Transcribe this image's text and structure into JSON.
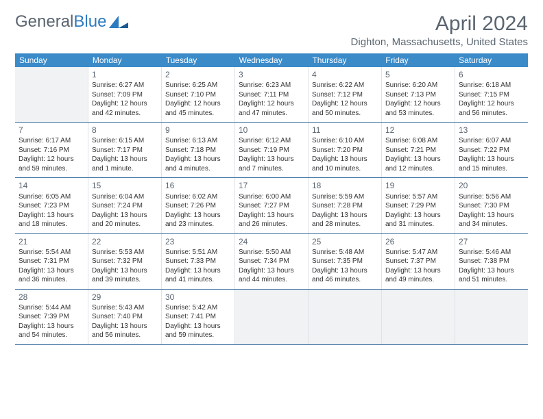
{
  "logo": {
    "part1": "General",
    "part2": "Blue"
  },
  "title": "April 2024",
  "location": "Dighton, Massachusetts, United States",
  "colors": {
    "header_bg": "#3b8bc9",
    "header_text": "#ffffff",
    "border": "#3b6fa0",
    "cell_border": "#dde3e8",
    "text": "#333333",
    "muted": "#5a6570",
    "empty_bg": "#f0f2f4"
  },
  "weekdays": [
    "Sunday",
    "Monday",
    "Tuesday",
    "Wednesday",
    "Thursday",
    "Friday",
    "Saturday"
  ],
  "weeks": [
    [
      null,
      {
        "n": "1",
        "sr": "Sunrise: 6:27 AM",
        "ss": "Sunset: 7:09 PM",
        "dl1": "Daylight: 12 hours",
        "dl2": "and 42 minutes."
      },
      {
        "n": "2",
        "sr": "Sunrise: 6:25 AM",
        "ss": "Sunset: 7:10 PM",
        "dl1": "Daylight: 12 hours",
        "dl2": "and 45 minutes."
      },
      {
        "n": "3",
        "sr": "Sunrise: 6:23 AM",
        "ss": "Sunset: 7:11 PM",
        "dl1": "Daylight: 12 hours",
        "dl2": "and 47 minutes."
      },
      {
        "n": "4",
        "sr": "Sunrise: 6:22 AM",
        "ss": "Sunset: 7:12 PM",
        "dl1": "Daylight: 12 hours",
        "dl2": "and 50 minutes."
      },
      {
        "n": "5",
        "sr": "Sunrise: 6:20 AM",
        "ss": "Sunset: 7:13 PM",
        "dl1": "Daylight: 12 hours",
        "dl2": "and 53 minutes."
      },
      {
        "n": "6",
        "sr": "Sunrise: 6:18 AM",
        "ss": "Sunset: 7:15 PM",
        "dl1": "Daylight: 12 hours",
        "dl2": "and 56 minutes."
      }
    ],
    [
      {
        "n": "7",
        "sr": "Sunrise: 6:17 AM",
        "ss": "Sunset: 7:16 PM",
        "dl1": "Daylight: 12 hours",
        "dl2": "and 59 minutes."
      },
      {
        "n": "8",
        "sr": "Sunrise: 6:15 AM",
        "ss": "Sunset: 7:17 PM",
        "dl1": "Daylight: 13 hours",
        "dl2": "and 1 minute."
      },
      {
        "n": "9",
        "sr": "Sunrise: 6:13 AM",
        "ss": "Sunset: 7:18 PM",
        "dl1": "Daylight: 13 hours",
        "dl2": "and 4 minutes."
      },
      {
        "n": "10",
        "sr": "Sunrise: 6:12 AM",
        "ss": "Sunset: 7:19 PM",
        "dl1": "Daylight: 13 hours",
        "dl2": "and 7 minutes."
      },
      {
        "n": "11",
        "sr": "Sunrise: 6:10 AM",
        "ss": "Sunset: 7:20 PM",
        "dl1": "Daylight: 13 hours",
        "dl2": "and 10 minutes."
      },
      {
        "n": "12",
        "sr": "Sunrise: 6:08 AM",
        "ss": "Sunset: 7:21 PM",
        "dl1": "Daylight: 13 hours",
        "dl2": "and 12 minutes."
      },
      {
        "n": "13",
        "sr": "Sunrise: 6:07 AM",
        "ss": "Sunset: 7:22 PM",
        "dl1": "Daylight: 13 hours",
        "dl2": "and 15 minutes."
      }
    ],
    [
      {
        "n": "14",
        "sr": "Sunrise: 6:05 AM",
        "ss": "Sunset: 7:23 PM",
        "dl1": "Daylight: 13 hours",
        "dl2": "and 18 minutes."
      },
      {
        "n": "15",
        "sr": "Sunrise: 6:04 AM",
        "ss": "Sunset: 7:24 PM",
        "dl1": "Daylight: 13 hours",
        "dl2": "and 20 minutes."
      },
      {
        "n": "16",
        "sr": "Sunrise: 6:02 AM",
        "ss": "Sunset: 7:26 PM",
        "dl1": "Daylight: 13 hours",
        "dl2": "and 23 minutes."
      },
      {
        "n": "17",
        "sr": "Sunrise: 6:00 AM",
        "ss": "Sunset: 7:27 PM",
        "dl1": "Daylight: 13 hours",
        "dl2": "and 26 minutes."
      },
      {
        "n": "18",
        "sr": "Sunrise: 5:59 AM",
        "ss": "Sunset: 7:28 PM",
        "dl1": "Daylight: 13 hours",
        "dl2": "and 28 minutes."
      },
      {
        "n": "19",
        "sr": "Sunrise: 5:57 AM",
        "ss": "Sunset: 7:29 PM",
        "dl1": "Daylight: 13 hours",
        "dl2": "and 31 minutes."
      },
      {
        "n": "20",
        "sr": "Sunrise: 5:56 AM",
        "ss": "Sunset: 7:30 PM",
        "dl1": "Daylight: 13 hours",
        "dl2": "and 34 minutes."
      }
    ],
    [
      {
        "n": "21",
        "sr": "Sunrise: 5:54 AM",
        "ss": "Sunset: 7:31 PM",
        "dl1": "Daylight: 13 hours",
        "dl2": "and 36 minutes."
      },
      {
        "n": "22",
        "sr": "Sunrise: 5:53 AM",
        "ss": "Sunset: 7:32 PM",
        "dl1": "Daylight: 13 hours",
        "dl2": "and 39 minutes."
      },
      {
        "n": "23",
        "sr": "Sunrise: 5:51 AM",
        "ss": "Sunset: 7:33 PM",
        "dl1": "Daylight: 13 hours",
        "dl2": "and 41 minutes."
      },
      {
        "n": "24",
        "sr": "Sunrise: 5:50 AM",
        "ss": "Sunset: 7:34 PM",
        "dl1": "Daylight: 13 hours",
        "dl2": "and 44 minutes."
      },
      {
        "n": "25",
        "sr": "Sunrise: 5:48 AM",
        "ss": "Sunset: 7:35 PM",
        "dl1": "Daylight: 13 hours",
        "dl2": "and 46 minutes."
      },
      {
        "n": "26",
        "sr": "Sunrise: 5:47 AM",
        "ss": "Sunset: 7:37 PM",
        "dl1": "Daylight: 13 hours",
        "dl2": "and 49 minutes."
      },
      {
        "n": "27",
        "sr": "Sunrise: 5:46 AM",
        "ss": "Sunset: 7:38 PM",
        "dl1": "Daylight: 13 hours",
        "dl2": "and 51 minutes."
      }
    ],
    [
      {
        "n": "28",
        "sr": "Sunrise: 5:44 AM",
        "ss": "Sunset: 7:39 PM",
        "dl1": "Daylight: 13 hours",
        "dl2": "and 54 minutes."
      },
      {
        "n": "29",
        "sr": "Sunrise: 5:43 AM",
        "ss": "Sunset: 7:40 PM",
        "dl1": "Daylight: 13 hours",
        "dl2": "and 56 minutes."
      },
      {
        "n": "30",
        "sr": "Sunrise: 5:42 AM",
        "ss": "Sunset: 7:41 PM",
        "dl1": "Daylight: 13 hours",
        "dl2": "and 59 minutes."
      },
      null,
      null,
      null,
      null
    ]
  ]
}
